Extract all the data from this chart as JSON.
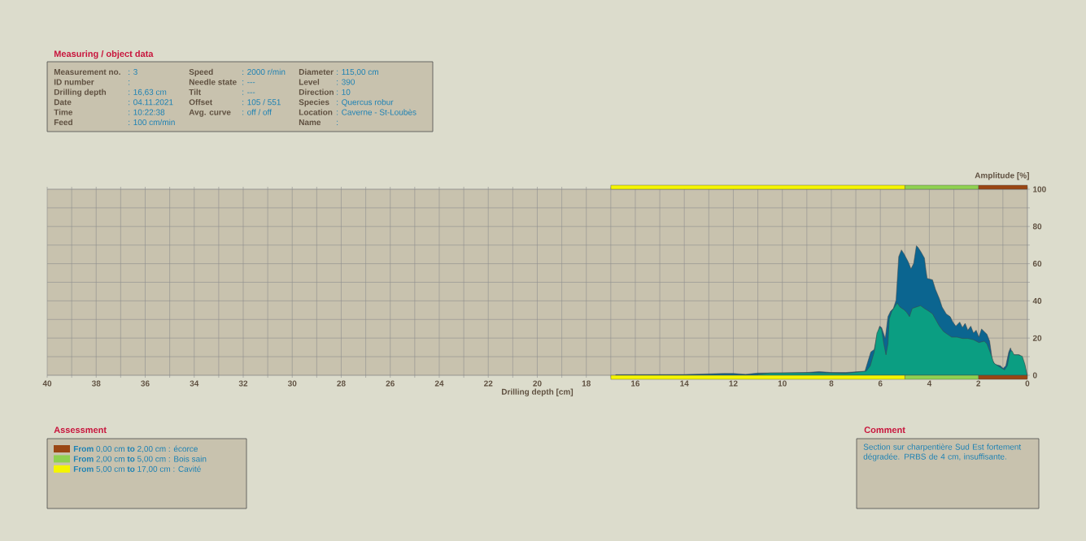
{
  "chart_data": {
    "type": "area",
    "xlabel": "Drilling depth [cm]",
    "ylabel": "Amplitude [%]",
    "xlim": [
      40,
      0
    ],
    "ylim": [
      0,
      100
    ],
    "xticks": [
      40,
      {
        "value": 39,
        "label": null
      },
      38,
      {
        "value": 37,
        "label": null
      },
      36,
      {
        "value": 35,
        "label": null
      },
      34,
      {
        "value": 33,
        "label": null
      },
      32,
      {
        "value": 31,
        "label": null
      },
      30,
      {
        "value": 29,
        "label": null
      },
      28,
      {
        "value": 27,
        "label": null
      },
      26,
      {
        "value": 25,
        "label": null
      },
      24,
      {
        "value": 23,
        "label": null
      },
      22,
      {
        "value": 21,
        "label": null
      },
      20,
      {
        "value": 19,
        "label": null
      },
      18,
      {
        "value": 17,
        "label": null
      },
      16,
      {
        "value": 15,
        "label": null
      },
      14,
      {
        "value": 13,
        "label": null
      },
      12,
      {
        "value": 11,
        "label": null
      },
      10,
      {
        "value": 9,
        "label": null
      },
      8,
      {
        "value": 7,
        "label": null
      },
      6,
      {
        "value": 5,
        "label": null
      },
      4,
      {
        "value": 3,
        "label": null
      },
      2,
      {
        "value": 1,
        "label": null
      },
      0
    ],
    "yticks": [
      0,
      {
        "value": 10,
        "label": null
      },
      20,
      {
        "value": 30,
        "label": null
      },
      40,
      {
        "value": 50,
        "label": null
      },
      60,
      {
        "value": 70,
        "label": null
      },
      80,
      {
        "value": 90,
        "label": null
      },
      100
    ],
    "grid": true,
    "series": [
      {
        "color": "#0b6590",
        "x": [
          16.8,
          14,
          12.4,
          12,
          11.5,
          11,
          10,
          9,
          8.5,
          8,
          7.5,
          7.41,
          6.63,
          6.39,
          6.25,
          6.14,
          6.03,
          5.95,
          5.8,
          5.69,
          5.58,
          5.47,
          5.36,
          5.25,
          5.14,
          5.03,
          4.86,
          4.75,
          4.64,
          4.53,
          4.47,
          4.36,
          4.2,
          4.14,
          4.09,
          3.87,
          3.75,
          3.59,
          3.48,
          3.31,
          3.15,
          3.04,
          2.92,
          2.76,
          2.65,
          2.54,
          2.43,
          2.31,
          2.2,
          2.09,
          1.98,
          1.87,
          1.76,
          1.65,
          1.54,
          1.43,
          1.32,
          1.1,
          0.99,
          0.88,
          0.76,
          0.69,
          0.6,
          0.32,
          0.21,
          0.1,
          0.01
        ],
        "values": [
          0.3,
          0.4,
          1,
          1,
          0.5,
          1.2,
          1.3,
          1.5,
          2,
          1.5,
          1.5,
          1.5,
          2.2,
          12.5,
          13.9,
          21.3,
          26.4,
          25.7,
          19.8,
          31.5,
          34.5,
          35.9,
          40.3,
          63.8,
          67.4,
          65.2,
          60.9,
          57.2,
          60.1,
          69.6,
          68.9,
          66.7,
          63,
          56.5,
          52.1,
          51.3,
          46.2,
          41.1,
          36.7,
          33,
          31.5,
          28.6,
          26.4,
          28.6,
          25.7,
          27.9,
          24.2,
          26.4,
          22.7,
          24.2,
          20.5,
          24.9,
          23.5,
          22,
          18.3,
          8.1,
          5.9,
          5.1,
          3.7,
          5.1,
          12.5,
          14.7,
          11,
          11,
          9.5,
          5.1,
          0
        ]
      },
      {
        "color": "#0b9e82",
        "x": [
          11,
          10.5,
          9,
          8,
          7.41,
          6.58,
          6.41,
          6.25,
          6.14,
          6.03,
          5.95,
          5.86,
          5.77,
          5.69,
          5.64,
          5.53,
          5.42,
          5.31,
          5.2,
          5.03,
          4.92,
          4.81,
          4.7,
          4.53,
          4.36,
          4.2,
          4.03,
          3.87,
          3.75,
          3.59,
          3.42,
          3.26,
          3.09,
          2.87,
          2.65,
          2.43,
          2.2,
          1.98,
          1.76,
          1.65,
          1.48,
          1.37,
          1.21,
          1.04,
          0.93,
          0.82,
          0.71,
          0.63,
          0.54,
          0.38,
          0.21,
          0.1,
          0.01
        ],
        "values": [
          0.5,
          1.2,
          1.3,
          1.2,
          1,
          2.2,
          5.1,
          12.5,
          22.7,
          25.7,
          24.9,
          16.9,
          11,
          16.9,
          30.1,
          34.5,
          36.7,
          38.9,
          36.7,
          35.2,
          33.7,
          31.5,
          35.9,
          36.7,
          37.4,
          35.9,
          34.5,
          33,
          30.1,
          26.4,
          23.5,
          22,
          20.5,
          20.5,
          19.8,
          19.8,
          19.1,
          17.6,
          18.3,
          16.9,
          11,
          6.6,
          5.1,
          3.7,
          2.9,
          5.1,
          12.5,
          13.2,
          11,
          11,
          10.3,
          5.9,
          0
        ]
      }
    ],
    "annotations": [
      "Measuring / object data",
      "Measurement no.",
      ": 3",
      "ID number",
      ":",
      "Drilling depth",
      ": 16,63 cm",
      "Date",
      ": 04.11.2021",
      "Time",
      ": 10:22:38",
      "Feed",
      ": 100 cm/min",
      "Speed",
      ": 2000 r/min",
      "Needle state",
      ": ---",
      "Tilt",
      ": ---",
      "Offset",
      ": 105 / 551",
      "Avg. curve",
      ": off / off",
      "Diameter",
      ": 115,00 cm",
      "Level",
      ": 390",
      "Direction",
      ": 10",
      "Species",
      ": Quercus robur",
      "Location",
      ": Caverne - St-Loubès",
      "Name",
      ":",
      "Assessment",
      "**From** 0,00 cm **to** 2,00 cm : écorce",
      "**From** 2,00 cm **to** 5,00 cm : Bois sain",
      "**From** 5,00 cm **to** 17,00 cm : Cavité",
      "Comment",
      "Section sur charpentière Sud Est fortement dégradée. PRBS de 4 cm, insuffisante."
    ]
  }
}
